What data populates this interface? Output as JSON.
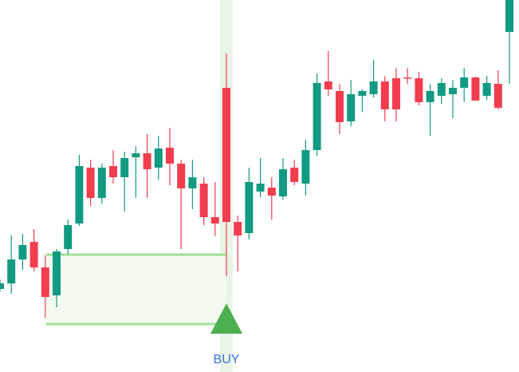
{
  "chart_data": {
    "type": "candlestick",
    "open": [
      104,
      111,
      141,
      163,
      131,
      96,
      154,
      186,
      256,
      218,
      258,
      244,
      269,
      274,
      256,
      281,
      261,
      230,
      236,
      194,
      356,
      188,
      174,
      226,
      231,
      220,
      256,
      236,
      278,
      364,
      352,
      314,
      346,
      348,
      364,
      368,
      369,
      368,
      338,
      346,
      348,
      356,
      369,
      346,
      361,
      426
    ],
    "high": [
      116,
      171,
      173,
      179,
      146,
      154,
      191,
      272,
      266,
      261,
      278,
      276,
      283,
      298,
      296,
      306,
      266,
      266,
      244,
      238,
      399,
      196,
      256,
      268,
      244,
      268,
      266,
      291,
      374,
      402,
      361,
      366,
      354,
      391,
      371,
      381,
      381,
      376,
      361,
      368,
      366,
      381,
      370,
      371,
      378,
      520
    ],
    "low": [
      101,
      98,
      128,
      126,
      68,
      81,
      148,
      183,
      208,
      211,
      236,
      201,
      218,
      218,
      241,
      234,
      154,
      204,
      184,
      170,
      120,
      126,
      166,
      219,
      191,
      216,
      234,
      221,
      271,
      346,
      298,
      308,
      326,
      344,
      314,
      314,
      361,
      334,
      296,
      336,
      318,
      338,
      340,
      341,
      329,
      361
    ],
    "close": [
      111,
      141,
      159,
      131,
      94,
      151,
      184,
      258,
      218,
      256,
      244,
      268,
      274,
      254,
      280,
      261,
      230,
      244,
      194,
      186,
      188,
      171,
      238,
      236,
      221,
      254,
      238,
      278,
      362,
      354,
      313,
      348,
      352,
      364,
      329,
      329,
      368,
      338,
      352,
      362,
      356,
      369,
      340,
      362,
      331,
      500
    ],
    "up_color": "#129a82",
    "down_color": "#f23d4f",
    "ylim": [
      0,
      466
    ],
    "zone": {
      "high": 147,
      "low": 60,
      "color": "#9fe09a"
    },
    "signals": [
      {
        "index": 20,
        "label": "BUY",
        "color": "#4caf50",
        "label_color": "#3a72d9"
      }
    ]
  }
}
